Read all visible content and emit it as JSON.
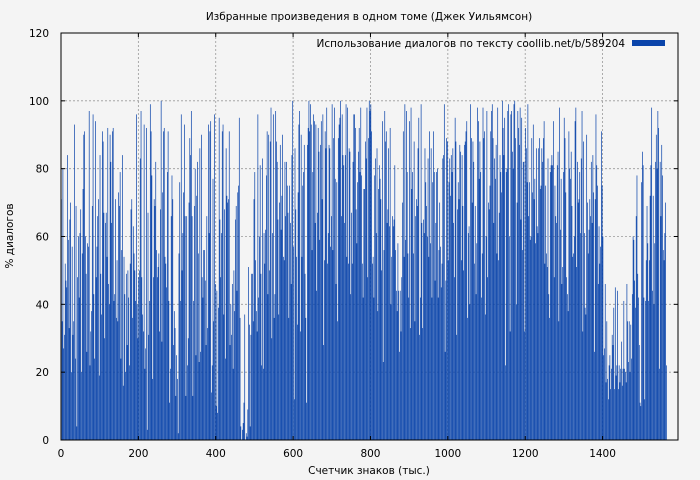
{
  "chart_data": {
    "type": "bar",
    "title": "Избранные произведения в одном томе (Джек Уильямсон)",
    "xlabel": "Счетчик знаков (тыс.)",
    "ylabel": "% диалогов",
    "xlim": [
      0,
      1595
    ],
    "ylim": [
      0,
      120
    ],
    "xticks": [
      0,
      200,
      400,
      600,
      800,
      1000,
      1200,
      1400
    ],
    "yticks": [
      0,
      20,
      40,
      60,
      80,
      100,
      120
    ],
    "grid": true,
    "legend_position": "top-right",
    "bar_color": "#0a44aa",
    "series": [
      {
        "name": "Использование диалогов по тексту coollib.net/b/589204",
        "x_step": 2,
        "values": [
          71,
          35,
          80,
          27,
          31,
          52,
          47,
          45,
          84,
          59,
          33,
          65,
          70,
          20,
          57,
          31,
          35,
          93,
          24,
          69,
          4,
          48,
          60,
          42,
          61,
          68,
          20,
          55,
          74,
          90,
          91,
          60,
          49,
          26,
          58,
          57,
          97,
          22,
          32,
          38,
          69,
          96,
          43,
          24,
          94,
          48,
          57,
          66,
          71,
          19,
          84,
          49,
          37,
          91,
          88,
          67,
          30,
          64,
          67,
          54,
          92,
          46,
          40,
          90,
          82,
          64,
          91,
          92,
          41,
          43,
          71,
          36,
          53,
          35,
          73,
          69,
          79,
          24,
          56,
          84,
          16,
          54,
          43,
          20,
          49,
          28,
          50,
          42,
          22,
          52,
          68,
          71,
          36,
          63,
          55,
          50,
          41,
          96,
          40,
          30,
          48,
          50,
          83,
          97,
          48,
          37,
          32,
          93,
          21,
          27,
          92,
          3,
          67,
          31,
          41,
          99,
          91,
          78,
          18,
          48,
          71,
          69,
          82,
          56,
          48,
          51,
          55,
          32,
          68,
          100,
          29,
          73,
          91,
          92,
          54,
          52,
          45,
          79,
          91,
          41,
          11,
          21,
          66,
          78,
          71,
          28,
          38,
          33,
          13,
          25,
          18,
          2,
          55,
          76,
          41,
          96,
          50,
          61,
          73,
          93,
          66,
          13,
          66,
          22,
          30,
          70,
          89,
          84,
          97,
          66,
          13,
          41,
          69,
          80,
          25,
          72,
          82,
          55,
          23,
          86,
          26,
          90,
          48,
          42,
          56,
          56,
          47,
          28,
          66,
          33,
          93,
          61,
          91,
          94,
          14,
          22,
          77,
          35,
          96,
          46,
          10,
          44,
          8,
          39,
          95,
          65,
          48,
          61,
          91,
          93,
          37,
          68,
          24,
          86,
          72,
          70,
          71,
          91,
          28,
          40,
          31,
          46,
          21,
          50,
          38,
          65,
          69,
          44,
          73,
          75,
          95,
          36,
          4,
          0,
          3,
          5,
          11,
          37,
          0,
          2,
          1,
          9,
          51,
          34,
          4,
          31,
          49,
          49,
          35,
          71,
          79,
          53,
          38,
          32,
          96,
          42,
          60,
          81,
          49,
          22,
          83,
          21,
          61,
          52,
          62,
          78,
          91,
          43,
          90,
          50,
          88,
          98,
          30,
          61,
          96,
          36,
          43,
          97,
          88,
          82,
          65,
          37,
          70,
          87,
          62,
          72,
          90,
          54,
          53,
          82,
          66,
          82,
          75,
          67,
          36,
          75,
          64,
          46,
          84,
          100,
          57,
          12,
          86,
          68,
          54,
          34,
          73,
          93,
          97,
          32,
          90,
          54,
          75,
          79,
          87,
          49,
          36,
          11,
          87,
          92,
          100,
          91,
          99,
          93,
          56,
          79,
          96,
          94,
          64,
          93,
          44,
          67,
          92,
          85,
          59,
          87,
          94,
          71,
          96,
          28,
          53,
          91,
          86,
          98,
          52,
          61,
          87,
          86,
          57,
          66,
          99,
          56,
          89,
          98,
          77,
          46,
          76,
          35,
          89,
          93,
          95,
          100,
          66,
          96,
          84,
          81,
          64,
          84,
          99,
          54,
          98,
          52,
          86,
          85,
          43,
          67,
          52,
          82,
          96,
          96,
          92,
          68,
          58,
          76,
          85,
          92,
          79,
          98,
          78,
          52,
          42,
          74,
          74,
          88,
          83,
          98,
          48,
          89,
          100,
          97,
          99,
          91,
          52,
          54,
          42,
          78,
          83,
          61,
          86,
          38,
          74,
          81,
          77,
          71,
          50,
          94,
          23,
          56,
          97,
          88,
          91,
          64,
          68,
          86,
          63,
          92,
          40,
          54,
          66,
          63,
          65,
          81,
          56,
          44,
          38,
          58,
          44,
          26,
          44,
          32,
          48,
          70,
          91,
          54,
          99,
          59,
          97,
          79,
          55,
          42,
          94,
          33,
          98,
          74,
          79,
          55,
          88,
          35,
          66,
          71,
          69,
          86,
          95,
          31,
          42,
          99,
          64,
          33,
          65,
          61,
          86,
          76,
          69,
          60,
          83,
          54,
          91,
          58,
          86,
          42,
          76,
          91,
          79,
          47,
          64,
          79,
          80,
          42,
          56,
          70,
          57,
          45,
          52,
          83,
          84,
          99,
          26,
          47,
          89,
          88,
          53,
          76,
          83,
          72,
          84,
          79,
          86,
          64,
          48,
          95,
          88,
          31,
          68,
          76,
          71,
          87,
          85,
          53,
          84,
          69,
          50,
          87,
          88,
          91,
          94,
          36,
          61,
          63,
          40,
          99,
          89,
          70,
          88,
          82,
          52,
          69,
          43,
          58,
          98,
          94,
          77,
          88,
          79,
          42,
          55,
          98,
          89,
          91,
          37,
          60,
          97,
          48,
          70,
          68,
          75,
          91,
          97,
          99,
          89,
          64,
          83,
          77,
          87,
          55,
          98,
          53,
          67,
          84,
          79,
          73,
          100,
          92,
          84,
          95,
          22,
          79,
          80,
          97,
          99,
          60,
          32,
          96,
          97,
          85,
          80,
          99,
          100,
          89,
          40,
          70,
          97,
          92,
          87,
          98,
          65,
          95,
          56,
          82,
          82,
          32,
          92,
          86,
          76,
          99,
          66,
          76,
          59,
          60,
          89,
          73,
          93,
          71,
          77,
          58,
          86,
          63,
          61,
          86,
          89,
          74,
          75,
          86,
          82,
          89,
          94,
          52,
          75,
          55,
          51,
          83,
          43,
          36,
          79,
          81,
          84,
          81,
          94,
          48,
          75,
          66,
          64,
          81,
          85,
          35,
          98,
          62,
          77,
          46,
          51,
          79,
          95,
          89,
          73,
          48,
          43,
          38,
          91,
          80,
          77,
          85,
          69,
          54,
          55,
          60,
          94,
          98,
          51,
          82,
          70,
          71,
          79,
          61,
          83,
          97,
          32,
          88,
          61,
          39,
          37,
          90,
          70,
          55,
          62,
          71,
          66,
          82,
          64,
          84,
          73,
          26,
          71,
          96,
          81,
          75,
          46,
          63,
          52,
          57,
          91,
          75,
          60,
          25,
          27,
          46,
          17,
          35,
          18,
          12,
          22,
          25,
          15,
          21,
          31,
          28,
          39,
          15,
          45,
          19,
          22,
          44,
          15,
          22,
          17,
          21,
          29,
          16,
          21,
          41,
          21,
          20,
          17,
          46,
          35,
          23,
          35,
          20,
          34,
          24,
          43,
          60,
          59,
          47,
          39,
          66,
          78,
          49,
          42,
          28,
          11,
          10,
          76,
          85,
          81,
          42,
          12,
          41,
          53,
          69,
          58,
          41,
          53,
          72,
          81,
          98,
          44,
          72,
          40,
          58,
          82,
          90,
          80,
          97,
          92,
          21,
          82,
          66,
          87,
          78,
          56,
          53,
          61,
          70,
          22
        ]
      }
    ]
  }
}
